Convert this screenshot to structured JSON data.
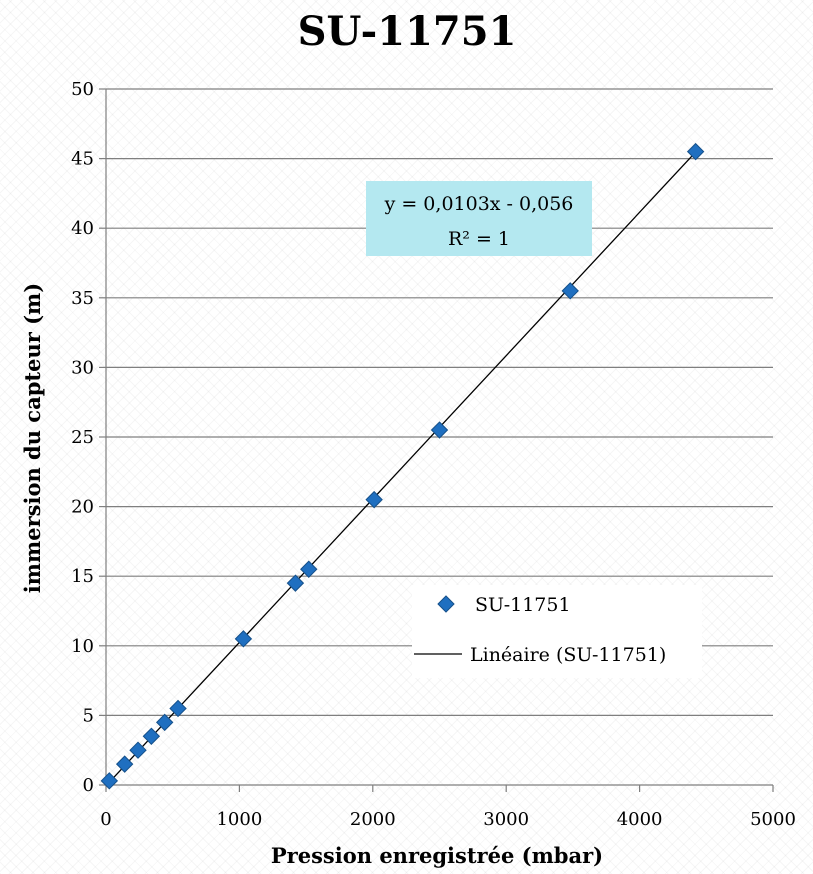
{
  "chart_data": {
    "type": "scatter",
    "title": "SU-11751",
    "xlabel": "Pression enregistrée (mbar)",
    "ylabel": "immersion du capteur (m)",
    "xlim": [
      0,
      5000
    ],
    "ylim": [
      0,
      50
    ],
    "xticks": [
      0,
      1000,
      2000,
      3000,
      4000,
      5000
    ],
    "yticks": [
      0,
      5,
      10,
      15,
      20,
      25,
      30,
      35,
      40,
      45,
      50
    ],
    "grid": "horizontal",
    "series": [
      {
        "name": "SU-11751",
        "marker": "diamond",
        "color": "#1f6fc0",
        "x": [
          25,
          140,
          240,
          340,
          440,
          540,
          1030,
          1420,
          1520,
          2010,
          2500,
          3480,
          4420
        ],
        "y": [
          0.3,
          1.5,
          2.5,
          3.5,
          4.5,
          5.5,
          10.5,
          14.5,
          15.5,
          20.5,
          25.5,
          35.5,
          45.5
        ]
      }
    ],
    "trendline": {
      "name": "Linéaire (SU-11751)",
      "type": "linear",
      "slope": 0.0103,
      "intercept": -0.056,
      "x_range": [
        0,
        4420
      ],
      "color": "#000000"
    },
    "annotation": {
      "line1": "y = 0,0103x - 0,056",
      "line2": "R² = 1",
      "background": "#b4e8f0"
    },
    "legend": {
      "position": "center-right",
      "items": [
        "SU-11751",
        "Linéaire (SU-11751)"
      ]
    }
  }
}
